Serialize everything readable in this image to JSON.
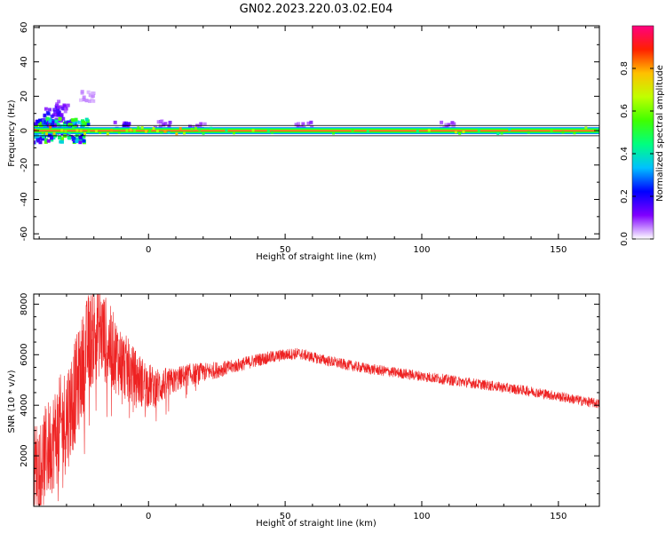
{
  "title": "GN02.2023.220.03.02.E04",
  "chart_data": [
    {
      "type": "heatmap",
      "xlabel": "Height of straight line (km)",
      "ylabel": "Frequency (Hz)",
      "xlim": [
        -42,
        165
      ],
      "ylim": [
        -63,
        61
      ],
      "xticks": [
        0,
        50,
        100,
        150
      ],
      "yticks": [
        -60,
        -40,
        -20,
        0,
        20,
        40,
        60
      ],
      "colorbar": {
        "label": "Normalized spectral amplitude",
        "range": [
          0.0,
          1.0
        ],
        "ticks": [
          "0.0",
          "0.2",
          "0.4",
          "0.6",
          "0.8"
        ],
        "colormap": "rainbow",
        "colors": [
          "#ffffff",
          "#8000ff",
          "#0000ff",
          "#00c0ff",
          "#00ff80",
          "#40ff00",
          "#c0ff00",
          "#ffc000",
          "#ff2000",
          "#ff0080"
        ]
      },
      "band": {
        "center_freq_hz": 0,
        "half_width_hz": 2,
        "peak_value": 0.95
      },
      "scatter_clusters": [
        {
          "x": -40,
          "y": -2,
          "value": 0.35
        },
        {
          "x": -38,
          "y": 5,
          "value": 0.25
        },
        {
          "x": -35,
          "y": 10,
          "value": 0.2
        },
        {
          "x": -33,
          "y": 8,
          "value": 0.15
        },
        {
          "x": -32,
          "y": 14,
          "value": 0.12
        },
        {
          "x": -23,
          "y": 20,
          "value": 0.05
        },
        {
          "x": -28,
          "y": 3,
          "value": 0.3
        },
        {
          "x": -10,
          "y": 3,
          "value": 0.15
        },
        {
          "x": 5,
          "y": 3,
          "value": 0.12
        },
        {
          "x": 18,
          "y": 2,
          "value": 0.1
        },
        {
          "x": 57,
          "y": 2,
          "value": 0.1
        },
        {
          "x": 110,
          "y": 2,
          "value": 0.1
        }
      ]
    },
    {
      "type": "line",
      "xlabel": "Height of straight line (km)",
      "ylabel": "SNR (10 * v/v)",
      "xlim": [
        -42,
        165
      ],
      "ylim": [
        0,
        8400
      ],
      "xticks": [
        0,
        50,
        100,
        150
      ],
      "yticks": [
        2000,
        4000,
        6000,
        8000
      ],
      "color": "#ee2222",
      "envelope": {
        "x": [
          -42,
          -38,
          -34,
          -30,
          -26,
          -22,
          -18,
          -14,
          -10,
          -6,
          -2,
          2,
          8,
          14,
          20,
          30,
          40,
          50,
          55,
          60,
          70,
          80,
          90,
          100,
          110,
          120,
          130,
          140,
          150,
          160,
          165
        ],
        "y": [
          1500,
          2000,
          2800,
          3500,
          4800,
          6500,
          7000,
          6300,
          5700,
          5200,
          4900,
          4700,
          4900,
          5200,
          5300,
          5500,
          5800,
          6000,
          6050,
          5900,
          5650,
          5450,
          5300,
          5150,
          5000,
          4850,
          4700,
          4550,
          4350,
          4150,
          4050
        ]
      },
      "noise_amplitude": {
        "x": [
          -42,
          -30,
          -18,
          -8,
          0,
          10,
          30,
          60,
          165
        ],
        "y": [
          1800,
          2200,
          1900,
          1300,
          900,
          500,
          280,
          220,
          200
        ]
      }
    }
  ]
}
